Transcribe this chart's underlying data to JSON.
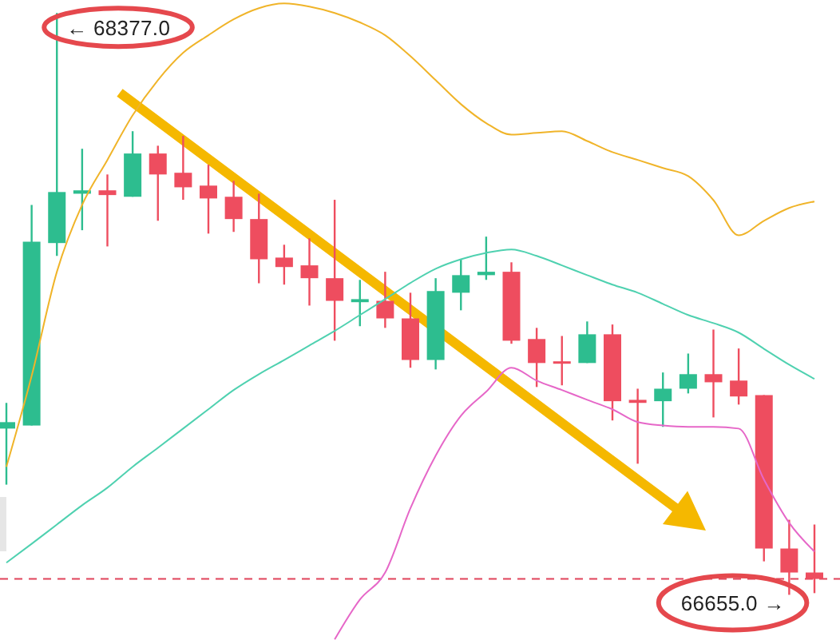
{
  "chart_data": {
    "type": "candlestick",
    "categories": [
      null,
      null,
      null,
      null,
      null,
      null,
      null,
      null,
      null,
      null,
      null,
      null,
      null,
      null,
      null,
      null,
      null,
      null,
      null,
      null,
      null,
      null,
      null,
      null,
      null,
      null,
      null,
      null,
      null,
      null,
      null,
      null,
      null
    ],
    "ohlc": [
      [
        67147,
        67223,
        66981,
        67166
      ],
      [
        67156,
        67809,
        67156,
        67700
      ],
      [
        67696,
        68377,
        67658,
        67847
      ],
      [
        67842,
        67975,
        67734,
        67852
      ],
      [
        67852,
        67899,
        67686,
        67838
      ],
      [
        67833,
        68027,
        67833,
        67961
      ],
      [
        67961,
        67984,
        67762,
        67899
      ],
      [
        67904,
        68013,
        67824,
        67861
      ],
      [
        67866,
        67928,
        67724,
        67828
      ],
      [
        67833,
        67880,
        67729,
        67767
      ],
      [
        67767,
        67842,
        67577,
        67648
      ],
      [
        67653,
        67691,
        67573,
        67625
      ],
      [
        67630,
        67710,
        67511,
        67592
      ],
      [
        67592,
        67824,
        67407,
        67525
      ],
      [
        67521,
        67587,
        67450,
        67530
      ],
      [
        67525,
        67611,
        67445,
        67473
      ],
      [
        67473,
        67549,
        67327,
        67350
      ],
      [
        67350,
        67592,
        67322,
        67554
      ],
      [
        67549,
        67648,
        67497,
        67601
      ],
      [
        67601,
        67715,
        67587,
        67611
      ],
      [
        67611,
        67639,
        67398,
        67407
      ],
      [
        67412,
        67445,
        67270,
        67341
      ],
      [
        67346,
        67421,
        67275,
        67341
      ],
      [
        67341,
        67464,
        67341,
        67426
      ],
      [
        67426,
        67455,
        67171,
        67228
      ],
      [
        67232,
        67265,
        67043,
        67223
      ],
      [
        67228,
        67313,
        67152,
        67265
      ],
      [
        67265,
        67369,
        67251,
        67308
      ],
      [
        67308,
        67440,
        67180,
        67284
      ],
      [
        67289,
        67384,
        67218,
        67242
      ],
      [
        67246,
        67246,
        66754,
        66792
      ],
      [
        66792,
        66877,
        66655,
        66721
      ],
      [
        66721,
        66863,
        66660,
        66702
      ]
    ],
    "series": [
      {
        "type": "line",
        "color": "#f0b429",
        "values": [
          67034,
          67303,
          67611,
          67809,
          67942,
          68074,
          68178,
          68259,
          68311,
          68358,
          68391,
          68405,
          68396,
          68377,
          68349,
          68311,
          68249,
          68178,
          68107,
          68051,
          68017,
          68022,
          68027,
          67998,
          67965,
          67942,
          67918,
          67894,
          67823,
          67719,
          67762,
          67800,
          67819
        ]
      },
      {
        "type": "line",
        "color": "#4fd1b0",
        "values": [
          66750,
          66806,
          66863,
          66920,
          66972,
          67034,
          67090,
          67147,
          67204,
          67261,
          67308,
          67350,
          67393,
          67436,
          67483,
          67530,
          67578,
          67620,
          67648,
          67667,
          67677,
          67658,
          67630,
          67601,
          67573,
          67549,
          67516,
          67483,
          67459,
          67431,
          67383,
          67336,
          67294
        ]
      },
      {
        "type": "line",
        "color": "#e667c8",
        "values": [
          null,
          null,
          null,
          null,
          null,
          null,
          null,
          null,
          null,
          null,
          null,
          null,
          null,
          66523,
          66641,
          66721,
          66911,
          67067,
          67185,
          67256,
          67327,
          67289,
          67261,
          67232,
          67204,
          67166,
          67156,
          67152,
          67152,
          67147,
          66996,
          66868,
          66783
        ]
      }
    ],
    "ylim": [
      66500,
      68420
    ],
    "ref_lines": [
      {
        "axis": "y",
        "value": 66702,
        "color": "#e0435a",
        "line_style": "dashed"
      }
    ],
    "annotations": [
      "← 68377.0",
      "66655.0 →"
    ]
  }
}
